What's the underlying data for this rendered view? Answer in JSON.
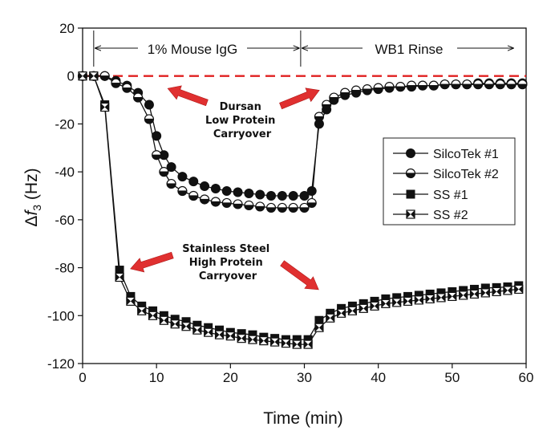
{
  "chart_data": {
    "type": "line",
    "xlabel": "Time (min)",
    "ylabel_parts": {
      "delta": "Δ",
      "var": "f",
      "sub": "3",
      "unit": " (Hz)"
    },
    "xlim": [
      0,
      60
    ],
    "ylim": [
      -120,
      20
    ],
    "x_ticks": [
      0,
      10,
      20,
      30,
      40,
      50,
      60
    ],
    "y_ticks": [
      20,
      0,
      -20,
      -40,
      -60,
      -80,
      -100,
      -120
    ],
    "grid": false,
    "legend_position": "right",
    "phases": [
      {
        "label": "1% Mouse IgG",
        "from": 1.5,
        "to": 29.5
      },
      {
        "label": "WB1 Rinse",
        "from": 29.5,
        "to": 60
      }
    ],
    "annotations": [
      {
        "lines": [
          "Dursan",
          "Low Protein",
          "Carryover"
        ]
      },
      {
        "lines": [
          "Stainless Steel",
          "High Protein",
          "Carryover"
        ]
      }
    ],
    "reference_line": {
      "y": 0,
      "color": "#e02020",
      "style": "dashed"
    },
    "arrow_color": "#e03030",
    "series": [
      {
        "name": "SilcoTek #1",
        "marker": "circle-filled",
        "x": [
          0,
          1.5,
          3,
          4.5,
          6,
          7.5,
          9,
          10,
          11,
          12,
          13.5,
          15,
          16.5,
          18,
          19.5,
          21,
          22.5,
          24,
          25.5,
          27,
          28.5,
          30,
          31,
          32,
          33,
          34,
          35.5,
          37,
          38.5,
          40,
          41.5,
          43,
          44.5,
          46,
          47.5,
          49,
          50.5,
          52,
          53.5,
          55,
          56.5,
          58,
          59.5
        ],
        "values": [
          0,
          0,
          0,
          -2,
          -4,
          -7,
          -12,
          -25,
          -33,
          -38,
          -42,
          -44,
          -46,
          -47,
          -48,
          -48.5,
          -49,
          -49.5,
          -50,
          -50,
          -50,
          -50,
          -48,
          -20,
          -14,
          -10,
          -8,
          -7,
          -6,
          -5.5,
          -5,
          -4.5,
          -4.5,
          -4,
          -4,
          -3.5,
          -3.5,
          -3.5,
          -3,
          -3,
          -3,
          -3,
          -3
        ]
      },
      {
        "name": "SilcoTek #2",
        "marker": "circle-half",
        "x": [
          0,
          1.5,
          3,
          4.5,
          6,
          7.5,
          9,
          10,
          11,
          12,
          13.5,
          15,
          16.5,
          18,
          19.5,
          21,
          22.5,
          24,
          25.5,
          27,
          28.5,
          30,
          31,
          32,
          33,
          34,
          35.5,
          37,
          38.5,
          40,
          41.5,
          43,
          44.5,
          46,
          47.5,
          49,
          50.5,
          52,
          53.5,
          55,
          56.5,
          58,
          59.5
        ],
        "values": [
          0,
          0,
          0,
          -3,
          -5,
          -9,
          -18,
          -33,
          -40,
          -45,
          -48,
          -50,
          -51.5,
          -52.5,
          -53,
          -53.5,
          -54,
          -54.5,
          -55,
          -55,
          -55,
          -55,
          -53,
          -17,
          -12,
          -9,
          -7,
          -6,
          -5.5,
          -5,
          -4.5,
          -4.5,
          -4,
          -4,
          -4,
          -3.5,
          -3.5,
          -3.5,
          -3.5,
          -3.5,
          -3.5,
          -3.5,
          -3.5
        ]
      },
      {
        "name": "SS #1",
        "marker": "square-filled",
        "x": [
          0,
          1.5,
          3,
          5,
          6.5,
          8,
          9.5,
          11,
          12.5,
          14,
          15.5,
          17,
          18.5,
          20,
          21.5,
          23,
          24.5,
          26,
          27.5,
          29,
          30.5,
          32,
          33.5,
          35,
          36.5,
          38,
          39.5,
          41,
          42.5,
          44,
          45.5,
          47,
          48.5,
          50,
          51.5,
          53,
          54.5,
          56,
          57.5,
          59
        ],
        "values": [
          0,
          0,
          -12,
          -81,
          -92,
          -96,
          -98,
          -100,
          -101.5,
          -102.5,
          -104,
          -105,
          -106,
          -107,
          -107.5,
          -108,
          -109,
          -109.5,
          -110,
          -110,
          -110,
          -102,
          -99,
          -97,
          -96,
          -95,
          -94,
          -93,
          -92.5,
          -92,
          -91.5,
          -91,
          -90.5,
          -90,
          -89.5,
          -89,
          -88.5,
          -88.3,
          -88,
          -87.5
        ]
      },
      {
        "name": "SS #2",
        "marker": "square-bowtie",
        "x": [
          0,
          1.5,
          3,
          5,
          6.5,
          8,
          9.5,
          11,
          12.5,
          14,
          15.5,
          17,
          18.5,
          20,
          21.5,
          23,
          24.5,
          26,
          27.5,
          29,
          30.5,
          32,
          33.5,
          35,
          36.5,
          38,
          39.5,
          41,
          42.5,
          44,
          45.5,
          47,
          48.5,
          50,
          51.5,
          53,
          54.5,
          56,
          57.5,
          59
        ],
        "values": [
          0,
          0,
          -13,
          -84,
          -94,
          -98,
          -100,
          -102,
          -103.5,
          -104.5,
          -106,
          -107,
          -108,
          -108.5,
          -109.5,
          -110,
          -110.5,
          -111,
          -111.5,
          -112,
          -112,
          -105,
          -101,
          -99,
          -98,
          -97,
          -96,
          -95,
          -94.5,
          -94,
          -93.5,
          -93,
          -92.5,
          -92,
          -91.5,
          -91,
          -90.5,
          -90,
          -89.5,
          -89
        ]
      }
    ]
  }
}
